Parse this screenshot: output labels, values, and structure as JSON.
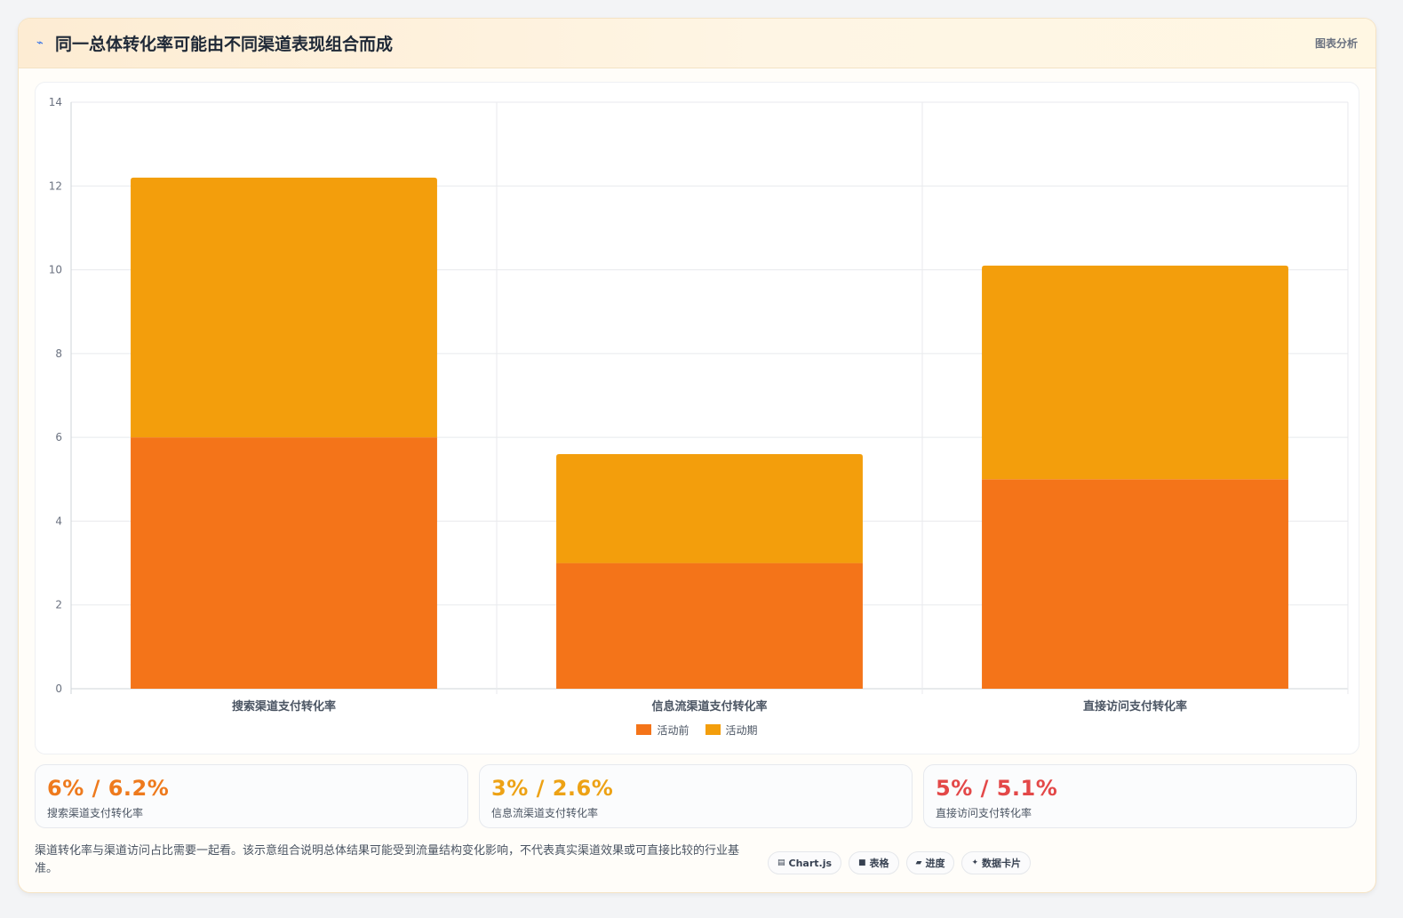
{
  "header": {
    "icon": "trend-line-icon",
    "title": "同一总体转化率可能由不同渠道表现组合而成",
    "tag": "图表分析"
  },
  "colors": {
    "before": "#f47419",
    "during": "#f39e0c",
    "stat_search": "#ee7a1d",
    "stat_feed": "#eda215",
    "stat_direct": "#e34848"
  },
  "chart_data": {
    "type": "bar",
    "stacked": true,
    "categories": [
      "搜索渠道支付转化率",
      "信息流渠道支付转化率",
      "直接访问支付转化率"
    ],
    "series": [
      {
        "name": "活动前",
        "values": [
          6,
          3,
          5
        ]
      },
      {
        "name": "活动期",
        "values": [
          6.2,
          2.6,
          5.1
        ]
      }
    ],
    "ylim": [
      0,
      14
    ],
    "yticks": [
      0,
      2,
      4,
      6,
      8,
      10,
      12,
      14
    ],
    "grid": true,
    "legend": "bottom"
  },
  "stats": [
    {
      "value": "6% / 6.2%",
      "label": "搜索渠道支付转化率"
    },
    {
      "value": "3% / 2.6%",
      "label": "信息流渠道支付转化率"
    },
    {
      "value": "5% / 5.1%",
      "label": "直接访问支付转化率"
    }
  ],
  "footnote": "渠道转化率与渠道访问占比需要一起看。该示意组合说明总体结果可能受到流量结构变化影响，不代表真实渠道效果或可直接比较的行业基准。",
  "chips": [
    {
      "icon": "chart-icon",
      "glyph": "▤",
      "label": "Chart.js"
    },
    {
      "icon": "table-icon",
      "glyph": "■",
      "label": "表格"
    },
    {
      "icon": "progress-icon",
      "glyph": "▰",
      "label": "进度"
    },
    {
      "icon": "sparkle-icon",
      "glyph": "✦",
      "label": "数据卡片"
    }
  ]
}
